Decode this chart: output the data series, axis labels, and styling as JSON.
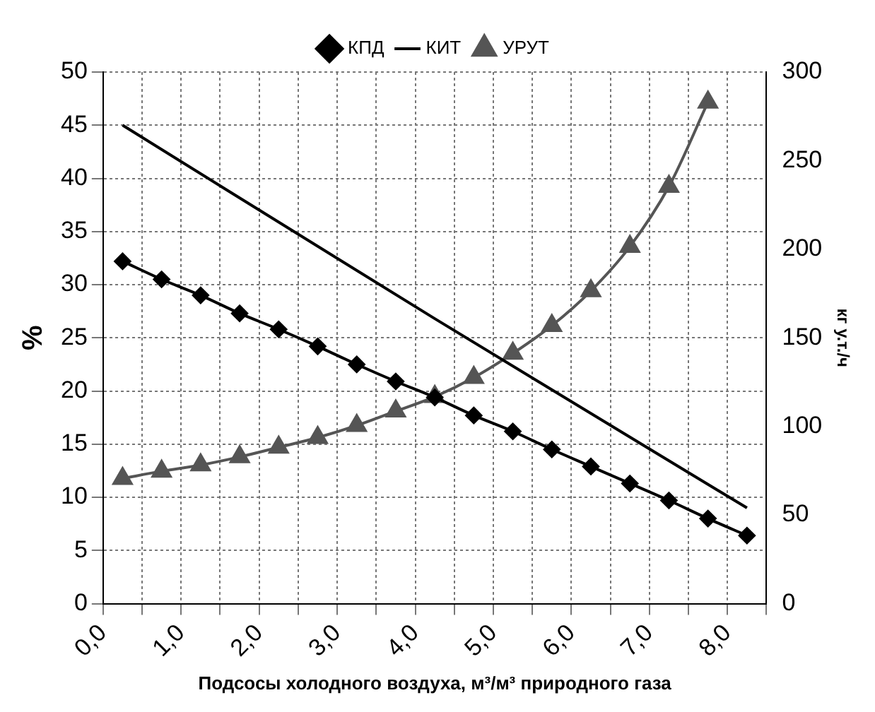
{
  "chart_data": {
    "type": "line",
    "xlabel": "Подсосы холодного воздуха, м³/м³ природного газа",
    "ylabel": "%",
    "y2label": "кг у.т./ч",
    "xlim": [
      0,
      8.5
    ],
    "xticks": [
      {
        "value": 0,
        "label": "0,0"
      },
      {
        "value": 0.5,
        "label": null
      },
      {
        "value": 1,
        "label": "1,0"
      },
      {
        "value": 1.5,
        "label": null
      },
      {
        "value": 2,
        "label": "2,0"
      },
      {
        "value": 2.5,
        "label": null
      },
      {
        "value": 3,
        "label": "3,0"
      },
      {
        "value": 3.5,
        "label": null
      },
      {
        "value": 4,
        "label": "4,0"
      },
      {
        "value": 4.5,
        "label": null
      },
      {
        "value": 5,
        "label": "5,0"
      },
      {
        "value": 5.5,
        "label": null
      },
      {
        "value": 6,
        "label": "6,0"
      },
      {
        "value": 6.5,
        "label": null
      },
      {
        "value": 7,
        "label": "7,0"
      },
      {
        "value": 7.5,
        "label": null
      },
      {
        "value": 8,
        "label": "8,0"
      },
      {
        "value": 8.5,
        "label": null
      }
    ],
    "ylim": [
      0,
      50
    ],
    "yticks": [
      0,
      5,
      10,
      15,
      20,
      25,
      30,
      35,
      40,
      45,
      50
    ],
    "y2lim": [
      0,
      300
    ],
    "y2ticks": [
      0,
      50,
      100,
      150,
      200,
      250,
      300
    ],
    "grid": true,
    "legend": "top",
    "line_style": "solid",
    "series": [
      {
        "name": "КПД",
        "color": "#000000",
        "marker": "diamond",
        "x": [
          0.25,
          0.75,
          1.25,
          1.75,
          2.25,
          2.75,
          3.25,
          3.75,
          4.25,
          4.75,
          5.25,
          5.75,
          6.25,
          6.75,
          7.25,
          7.75,
          8.25
        ],
        "values": [
          32.2,
          30.5,
          29.0,
          27.3,
          25.8,
          24.2,
          22.5,
          20.9,
          19.4,
          17.7,
          16.2,
          14.5,
          12.9,
          11.3,
          9.7,
          8.0,
          6.4
        ]
      },
      {
        "name": "КИТ",
        "color": "#000000",
        "marker": "none",
        "x": [
          0.25,
          4.25,
          8.25
        ],
        "values": [
          45,
          26.8,
          9
        ]
      },
      {
        "name": "УРУТ",
        "color": "#555555",
        "marker": "triangle",
        "axis": "y2",
        "x": [
          0.25,
          0.75,
          1.25,
          1.75,
          2.25,
          2.75,
          3.25,
          3.75,
          4.25,
          4.75,
          5.25,
          5.75,
          6.25,
          6.75,
          7.25,
          7.75
        ],
        "values": [
          70.6,
          74.7,
          78.2,
          82.8,
          88.2,
          93.7,
          100.5,
          108.6,
          116.8,
          127.6,
          141.2,
          156.9,
          176.5,
          201.5,
          235.4,
          283
        ]
      }
    ]
  }
}
